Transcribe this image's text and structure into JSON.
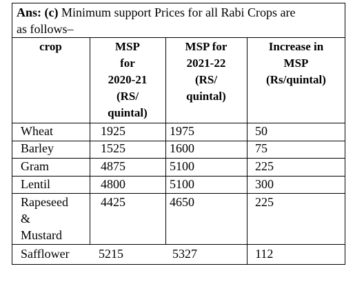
{
  "heading": {
    "prefix": "Ans: (c)",
    "line1": " Minimum support Prices for all Rabi Crops are",
    "line2": "as follows–"
  },
  "table": {
    "headers": {
      "crop": "crop",
      "msp_2020_21": [
        "MSP",
        "for",
        "2020-21",
        "(RS/",
        "quintal)"
      ],
      "msp_2021_22": [
        "MSP for",
        "2021-22",
        "(RS/",
        "quintal)"
      ],
      "increase": [
        "Increase in",
        "MSP",
        "(Rs/quintal)"
      ]
    },
    "rows": [
      {
        "crop": [
          "Wheat"
        ],
        "msp_2020_21": "1925",
        "msp_2021_22": "1975",
        "increase": "50"
      },
      {
        "crop": [
          "Barley"
        ],
        "msp_2020_21": "1525",
        "msp_2021_22": "1600",
        "increase": "75"
      },
      {
        "crop": [
          "Gram"
        ],
        "msp_2020_21": "4875",
        "msp_2021_22": "5100",
        "increase": "225"
      },
      {
        "crop": [
          "Lentil"
        ],
        "msp_2020_21": "4800",
        "msp_2021_22": "5100",
        "increase": "300"
      },
      {
        "crop": [
          "Rapeseed",
          "&",
          "Mustard"
        ],
        "msp_2020_21": "4425",
        "msp_2021_22": "4650",
        "increase": "225"
      },
      {
        "crop": [
          "Safflower"
        ],
        "msp_2020_21": "5215",
        "msp_2021_22": "5327",
        "increase": "112"
      }
    ]
  }
}
